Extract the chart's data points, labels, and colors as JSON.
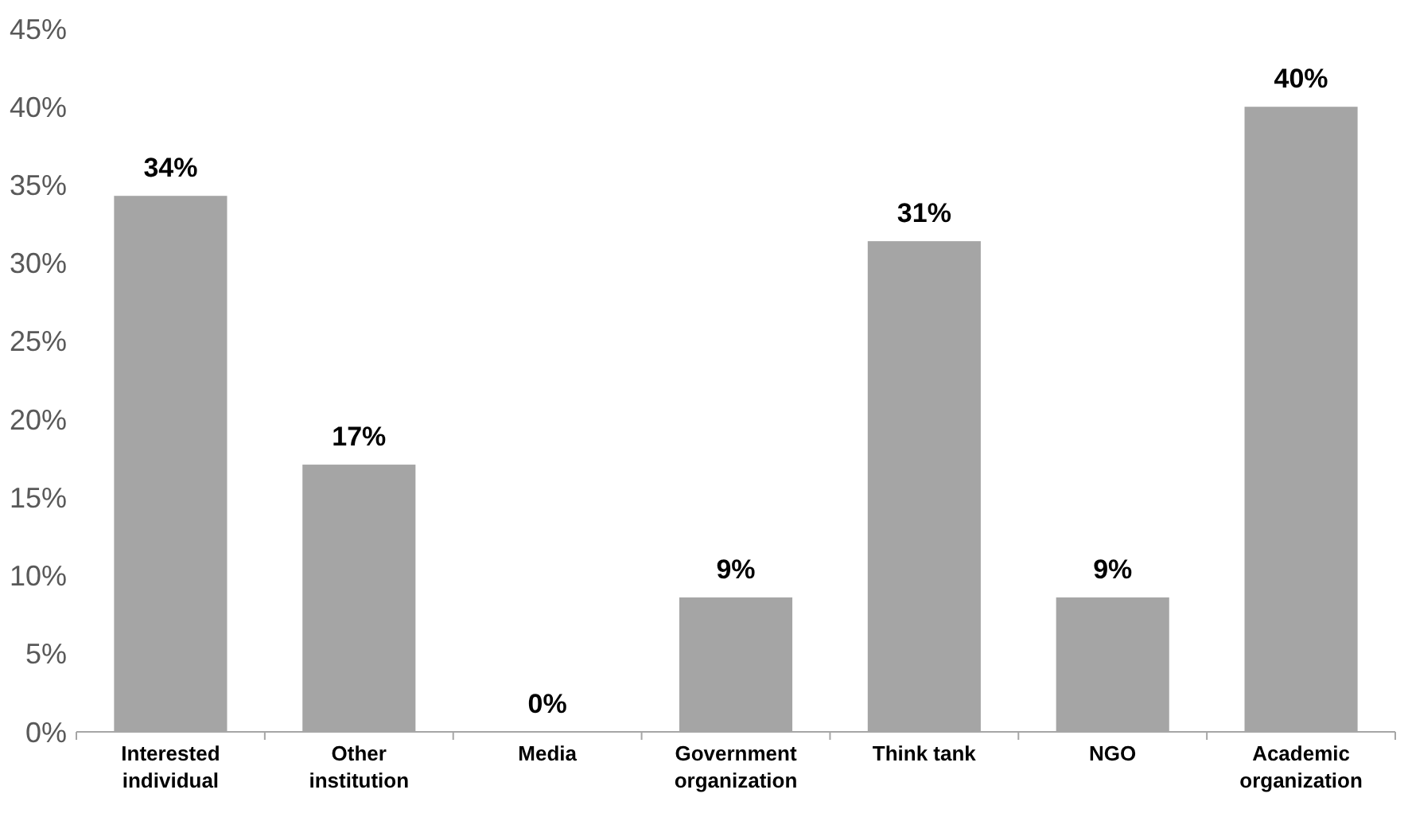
{
  "chart_data": {
    "type": "bar",
    "categories": [
      "Interested individual",
      "Other institution",
      "Media",
      "Government organization",
      "Think tank",
      "NGO",
      "Academic organization"
    ],
    "values": [
      34.3,
      17.1,
      0,
      8.6,
      31.4,
      8.6,
      40
    ],
    "value_labels": [
      "34%",
      "17%",
      "0%",
      "9%",
      "31%",
      "9%",
      "40%"
    ],
    "color": "#a5a5a5",
    "ylim": [
      0,
      45
    ],
    "yticks": [
      {
        "value": 0,
        "label": "0%"
      },
      {
        "value": 5,
        "label": "5%"
      },
      {
        "value": 10,
        "label": "10%"
      },
      {
        "value": 15,
        "label": "15%"
      },
      {
        "value": 20,
        "label": "20%"
      },
      {
        "value": 25,
        "label": "25%"
      },
      {
        "value": 30,
        "label": "30%"
      },
      {
        "value": 35,
        "label": "35%"
      },
      {
        "value": 40,
        "label": "40%"
      },
      {
        "value": 45,
        "label": "45%"
      }
    ],
    "grid": false
  }
}
